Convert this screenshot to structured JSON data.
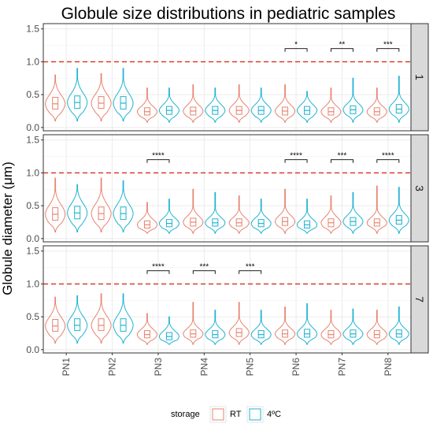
{
  "chart_data": {
    "type": "violin",
    "title": "Globule size distributions in pediatric samples",
    "ylabel": "Globule diameter (μm)",
    "xlabel": "",
    "categories": [
      "PN1",
      "PN2",
      "PN3",
      "PN4",
      "PN5",
      "PN6",
      "PN7",
      "PN8"
    ],
    "ylim": [
      -0.05,
      1.58
    ],
    "yticks": [
      "0.0",
      "0.5",
      "1.0",
      "1.5"
    ],
    "reference_line": 1.0,
    "legend": {
      "title": "storage",
      "position": "bottom",
      "items": [
        {
          "label": "RT",
          "color": "#e8836f"
        },
        {
          "label": "4ºC",
          "color": "#1fb3d2"
        }
      ]
    },
    "colors": {
      "RT": "#e8836f",
      "4C": "#1fb3d2",
      "reference_line": "#d7301f",
      "strip": "#d9d9d9"
    },
    "panels": [
      {
        "strip": "1",
        "stats": {
          "RT": [
            [
              0.1,
              0.28,
              0.36,
              0.46,
              0.8
            ],
            [
              0.1,
              0.29,
              0.37,
              0.47,
              0.82
            ],
            [
              0.08,
              0.19,
              0.24,
              0.3,
              0.6
            ],
            [
              0.08,
              0.19,
              0.25,
              0.31,
              0.65
            ],
            [
              0.08,
              0.2,
              0.26,
              0.32,
              0.65
            ],
            [
              0.08,
              0.19,
              0.25,
              0.31,
              0.65
            ],
            [
              0.08,
              0.19,
              0.24,
              0.3,
              0.6
            ],
            [
              0.08,
              0.19,
              0.24,
              0.3,
              0.6
            ]
          ],
          "4C": [
            [
              0.1,
              0.29,
              0.38,
              0.48,
              0.9
            ],
            [
              0.1,
              0.28,
              0.37,
              0.47,
              0.9
            ],
            [
              0.08,
              0.2,
              0.26,
              0.32,
              0.6
            ],
            [
              0.08,
              0.2,
              0.26,
              0.32,
              0.6
            ],
            [
              0.08,
              0.2,
              0.26,
              0.32,
              0.6
            ],
            [
              0.08,
              0.2,
              0.26,
              0.32,
              0.55
            ],
            [
              0.08,
              0.21,
              0.27,
              0.33,
              0.75
            ],
            [
              0.08,
              0.22,
              0.28,
              0.35,
              0.78
            ]
          ]
        },
        "significance": [
          {
            "category": "PN6",
            "label": "*"
          },
          {
            "category": "PN7",
            "label": "**"
          },
          {
            "category": "PN8",
            "label": "***"
          }
        ]
      },
      {
        "strip": "3",
        "stats": {
          "RT": [
            [
              0.1,
              0.28,
              0.37,
              0.47,
              0.92
            ],
            [
              0.1,
              0.29,
              0.38,
              0.48,
              0.92
            ],
            [
              0.08,
              0.16,
              0.21,
              0.27,
              0.55
            ],
            [
              0.08,
              0.19,
              0.25,
              0.31,
              0.75
            ],
            [
              0.08,
              0.19,
              0.24,
              0.3,
              0.65
            ],
            [
              0.08,
              0.2,
              0.26,
              0.32,
              0.75
            ],
            [
              0.08,
              0.18,
              0.24,
              0.3,
              0.65
            ],
            [
              0.08,
              0.19,
              0.24,
              0.3,
              0.8
            ]
          ],
          "4C": [
            [
              0.1,
              0.3,
              0.39,
              0.49,
              0.82
            ],
            [
              0.1,
              0.29,
              0.38,
              0.48,
              0.88
            ],
            [
              0.08,
              0.18,
              0.23,
              0.29,
              0.6
            ],
            [
              0.08,
              0.19,
              0.24,
              0.3,
              0.7
            ],
            [
              0.08,
              0.18,
              0.23,
              0.29,
              0.6
            ],
            [
              0.08,
              0.16,
              0.21,
              0.27,
              0.6
            ],
            [
              0.08,
              0.2,
              0.26,
              0.32,
              0.7
            ],
            [
              0.08,
              0.22,
              0.28,
              0.35,
              0.78
            ]
          ]
        },
        "significance": [
          {
            "category": "PN3",
            "label": "****"
          },
          {
            "category": "PN6",
            "label": "****"
          },
          {
            "category": "PN7",
            "label": "***"
          },
          {
            "category": "PN8",
            "label": "****"
          }
        ]
      },
      {
        "strip": "7",
        "stats": {
          "RT": [
            [
              0.1,
              0.28,
              0.36,
              0.46,
              0.8
            ],
            [
              0.1,
              0.29,
              0.37,
              0.47,
              0.85
            ],
            [
              0.08,
              0.18,
              0.23,
              0.29,
              0.55
            ],
            [
              0.08,
              0.19,
              0.24,
              0.3,
              0.72
            ],
            [
              0.08,
              0.2,
              0.26,
              0.32,
              0.72
            ],
            [
              0.08,
              0.19,
              0.24,
              0.3,
              0.65
            ],
            [
              0.08,
              0.18,
              0.23,
              0.29,
              0.6
            ],
            [
              0.08,
              0.18,
              0.23,
              0.29,
              0.6
            ]
          ],
          "4C": [
            [
              0.1,
              0.29,
              0.37,
              0.47,
              0.82
            ],
            [
              0.1,
              0.28,
              0.37,
              0.47,
              0.85
            ],
            [
              0.08,
              0.15,
              0.2,
              0.26,
              0.5
            ],
            [
              0.08,
              0.18,
              0.23,
              0.29,
              0.6
            ],
            [
              0.08,
              0.18,
              0.23,
              0.29,
              0.6
            ],
            [
              0.08,
              0.19,
              0.24,
              0.31,
              0.7
            ],
            [
              0.08,
              0.19,
              0.24,
              0.3,
              0.62
            ],
            [
              0.08,
              0.19,
              0.24,
              0.3,
              0.65
            ]
          ]
        },
        "significance": [
          {
            "category": "PN3",
            "label": "****"
          },
          {
            "category": "PN4",
            "label": "***"
          },
          {
            "category": "PN5",
            "label": "***"
          }
        ]
      }
    ]
  }
}
